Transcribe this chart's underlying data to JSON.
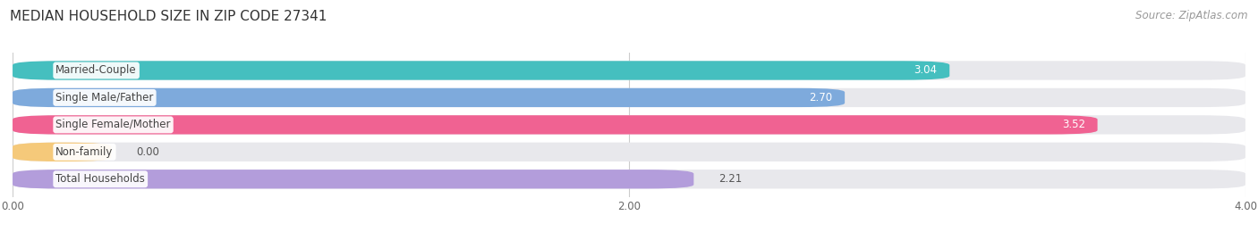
{
  "title": "MEDIAN HOUSEHOLD SIZE IN ZIP CODE 27341",
  "source": "Source: ZipAtlas.com",
  "categories": [
    "Married-Couple",
    "Single Male/Father",
    "Single Female/Mother",
    "Non-family",
    "Total Households"
  ],
  "values": [
    3.04,
    2.7,
    3.52,
    0.0,
    2.21
  ],
  "bar_colors": [
    "#45bfbf",
    "#7eaadc",
    "#f06292",
    "#f5c97a",
    "#b39ddb"
  ],
  "bar_bg_color": "#e8e8ec",
  "label_text_color": "#444444",
  "value_text_color_inside": "#ffffff",
  "value_text_color_outside": "#555555",
  "xlim": [
    0,
    4.0
  ],
  "xtick_values": [
    0.0,
    2.0,
    4.0
  ],
  "xtick_labels": [
    "0.00",
    "2.00",
    "4.00"
  ],
  "value_inside": [
    true,
    true,
    true,
    false,
    false
  ],
  "title_fontsize": 11,
  "label_fontsize": 8.5,
  "value_fontsize": 8.5,
  "source_fontsize": 8.5,
  "background_color": "#ffffff",
  "bar_height": 0.7,
  "bar_gap": 0.3,
  "n_bars": 5
}
